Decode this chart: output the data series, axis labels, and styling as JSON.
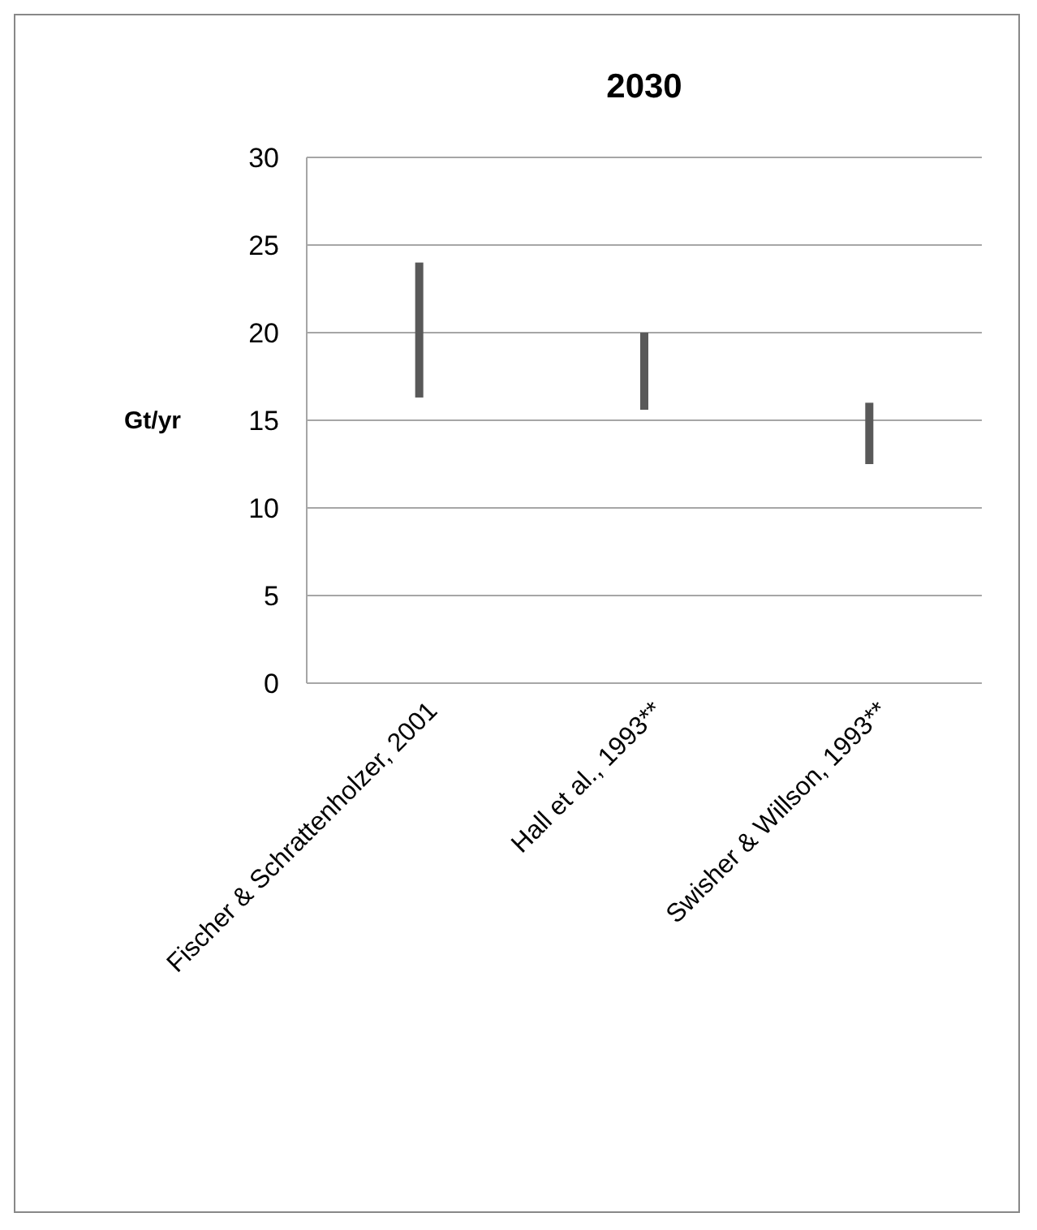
{
  "chart_data": {
    "type": "bar",
    "title": "2030",
    "ylabel": "Gt/yr",
    "categories": [
      "Fischer & Schrattenholzer, 2001",
      "Hall et al., 1993**",
      "Swisher & Willson, 1993**"
    ],
    "base": [
      16.3,
      15.6,
      12.5
    ],
    "values": [
      7.7,
      4.4,
      3.5
    ],
    "color": "#595959",
    "ylim": [
      0,
      30
    ],
    "yticks": [
      0,
      5,
      10,
      15,
      20,
      25,
      30
    ],
    "grid": "y"
  }
}
